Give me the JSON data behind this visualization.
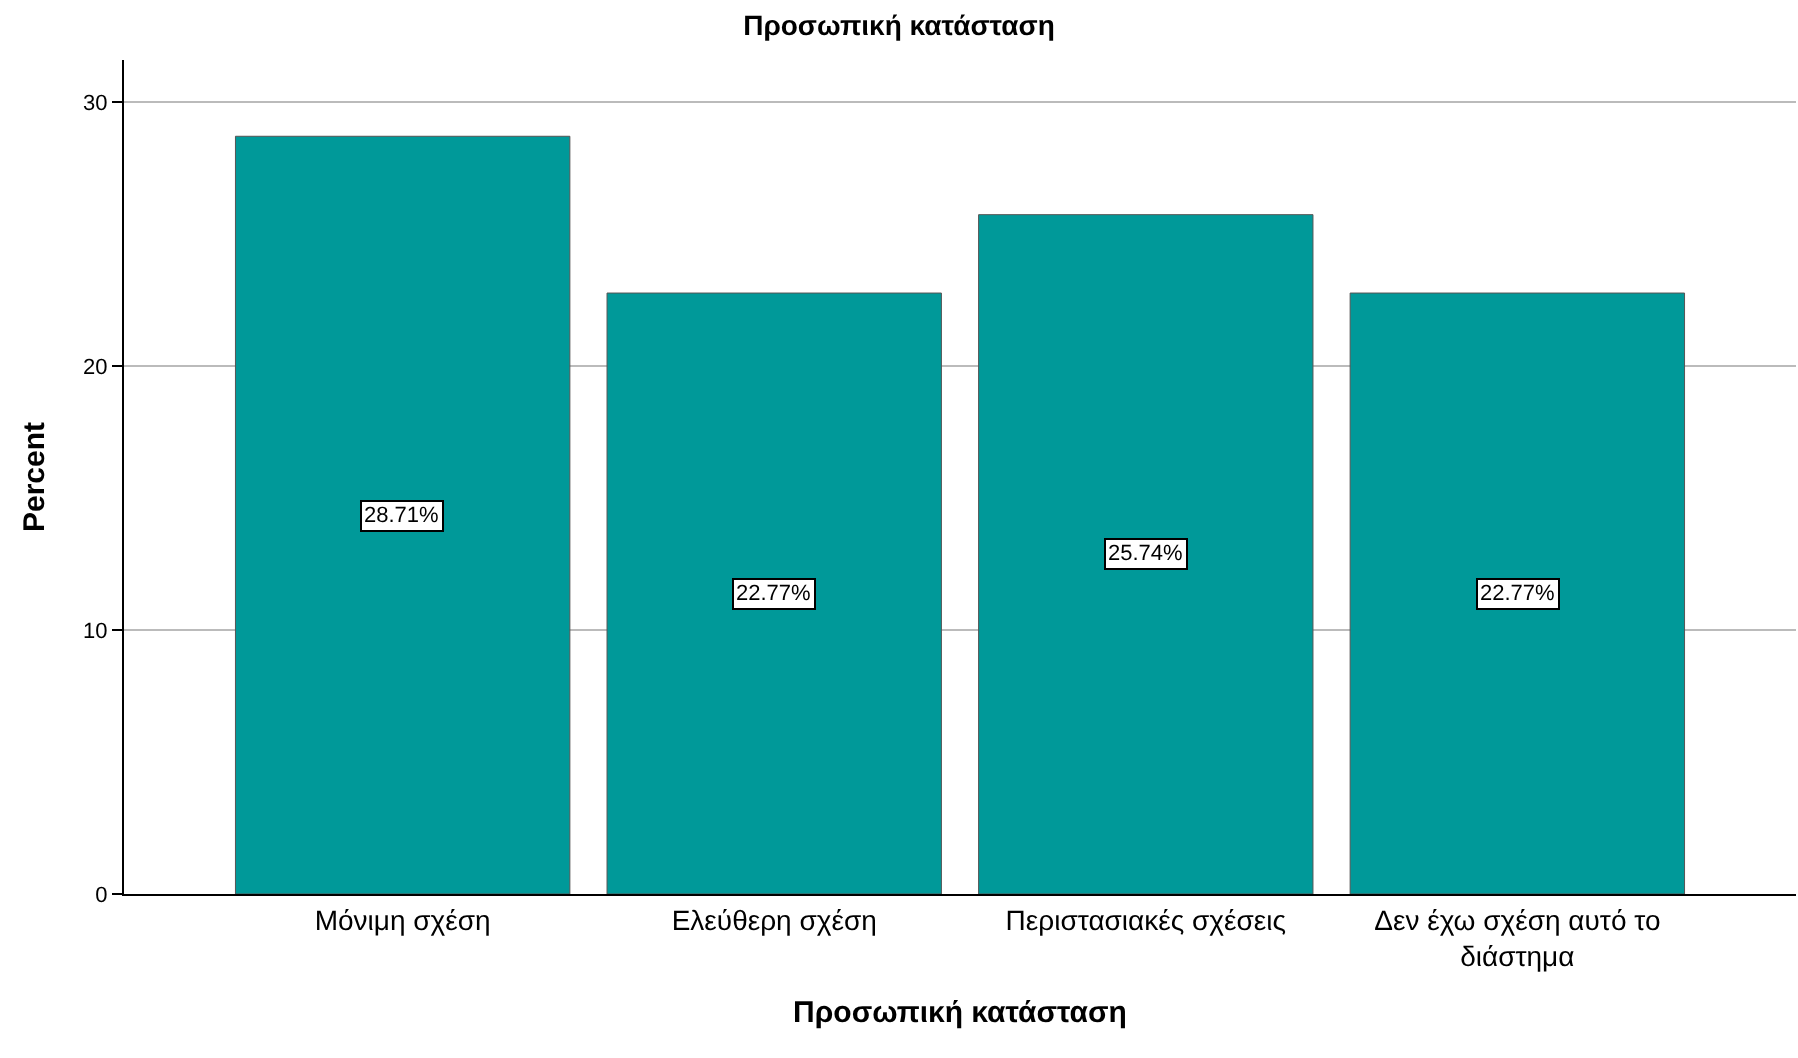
{
  "chart_data": {
    "type": "bar",
    "title": "Προσωπική κατάσταση",
    "xlabel": "Προσωπική κατάσταση",
    "ylabel": "Percent",
    "categories": [
      "Μόνιμη σχέση",
      "Ελεύθερη σχέση",
      "Περιστασιακές σχέσεις",
      "Δεν έχω σχέση αυτό το διάστημα"
    ],
    "values": [
      28.71,
      22.77,
      25.74,
      22.77
    ],
    "value_labels": [
      "28.71%",
      "22.77%",
      "25.74%",
      "22.77%"
    ],
    "color": "#009999",
    "ylim": [
      0,
      31.6
    ],
    "yticks": [
      0,
      10,
      20,
      30
    ],
    "grid": "y",
    "legend": false
  }
}
